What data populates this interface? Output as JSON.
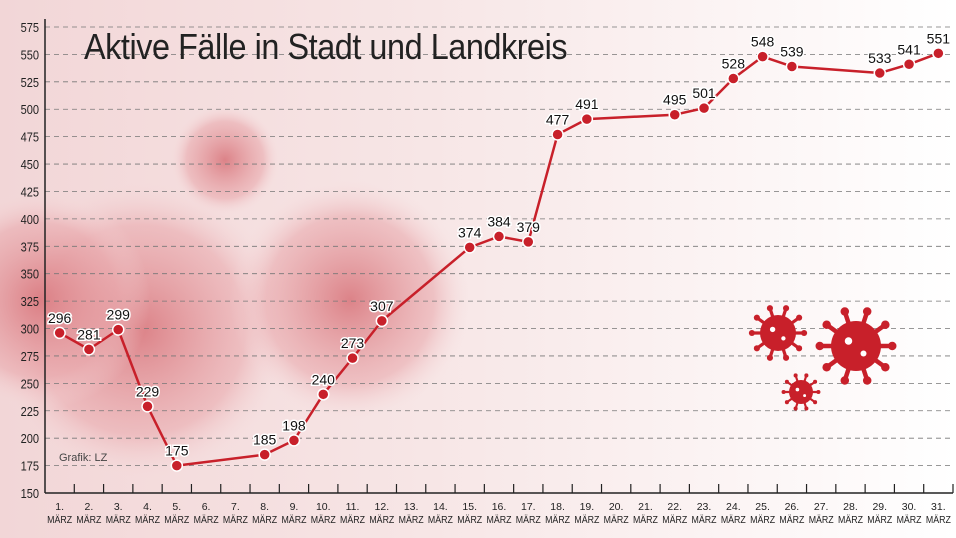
{
  "chart_data": {
    "type": "line",
    "title": "Aktive Fälle in Stadt und Landkreis",
    "credit": "Grafik: LZ",
    "x_month_label": "MÄRZ",
    "x_days": [
      1,
      2,
      3,
      4,
      5,
      6,
      7,
      8,
      9,
      10,
      11,
      12,
      13,
      14,
      15,
      16,
      17,
      18,
      19,
      20,
      21,
      22,
      23,
      24,
      25,
      26,
      27,
      28,
      29,
      30,
      31
    ],
    "ylim": [
      150,
      575
    ],
    "yticks": [
      150,
      175,
      200,
      225,
      250,
      275,
      300,
      325,
      350,
      375,
      400,
      425,
      450,
      475,
      500,
      525,
      550,
      575
    ],
    "grid": "horizontal dashed",
    "points": [
      {
        "day": 1,
        "value": 296
      },
      {
        "day": 2,
        "value": 281
      },
      {
        "day": 3,
        "value": 299
      },
      {
        "day": 4,
        "value": 229
      },
      {
        "day": 5,
        "value": 175
      },
      {
        "day": 8,
        "value": 185
      },
      {
        "day": 9,
        "value": 198
      },
      {
        "day": 10,
        "value": 240
      },
      {
        "day": 11,
        "value": 273
      },
      {
        "day": 12,
        "value": 307
      },
      {
        "day": 15,
        "value": 374
      },
      {
        "day": 16,
        "value": 384
      },
      {
        "day": 17,
        "value": 379
      },
      {
        "day": 18,
        "value": 477
      },
      {
        "day": 19,
        "value": 491
      },
      {
        "day": 22,
        "value": 495
      },
      {
        "day": 23,
        "value": 501
      },
      {
        "day": 24,
        "value": 528
      },
      {
        "day": 25,
        "value": 548
      },
      {
        "day": 26,
        "value": 539
      },
      {
        "day": 29,
        "value": 533
      },
      {
        "day": 30,
        "value": 541
      },
      {
        "day": 31,
        "value": 551
      }
    ],
    "colors": {
      "line": "#c8202a",
      "background_virus": "#e8a0a4",
      "text": "#222222"
    }
  }
}
